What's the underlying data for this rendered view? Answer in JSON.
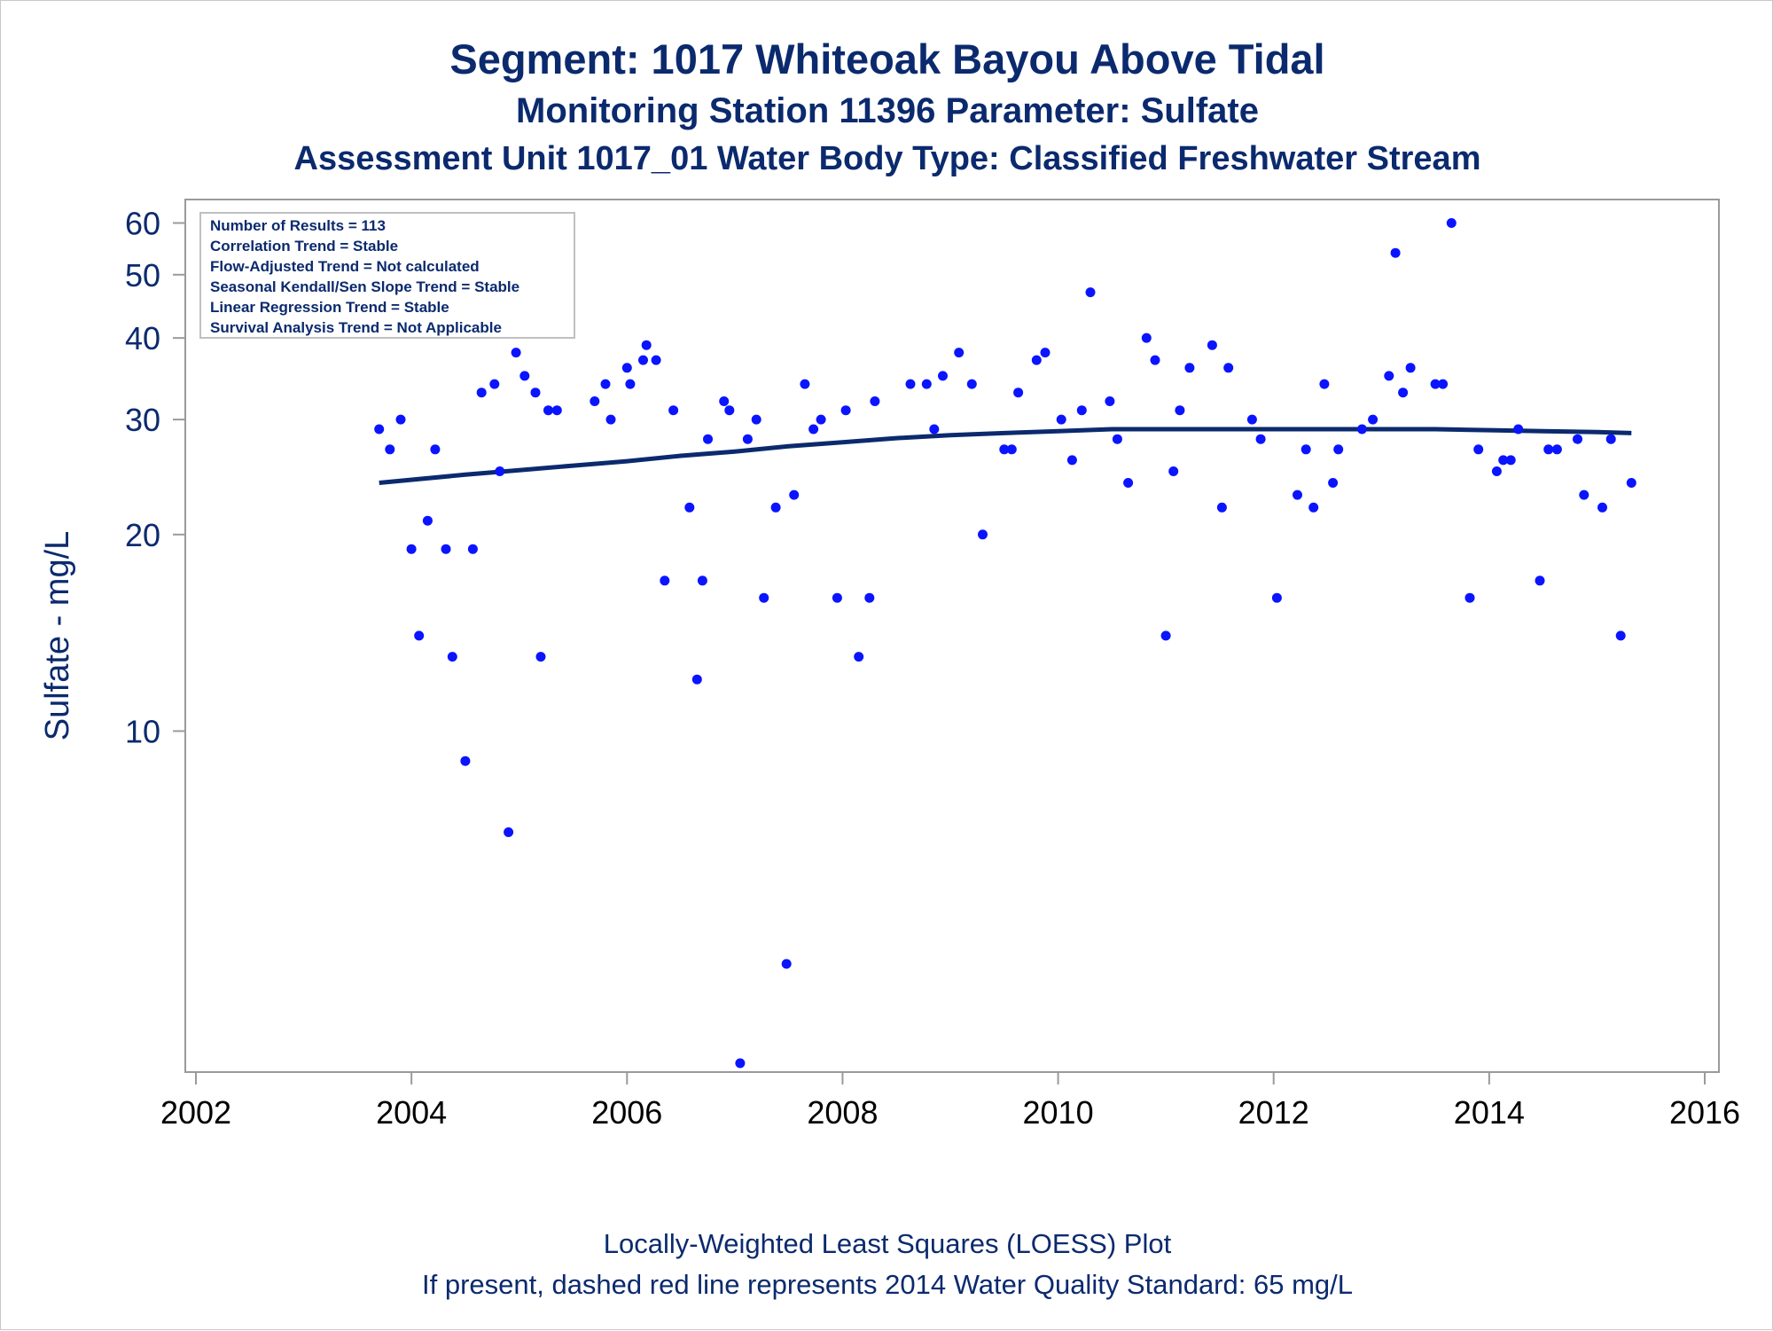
{
  "titles": {
    "line1": "Segment: 1017  Whiteoak Bayou Above Tidal",
    "line2": "Monitoring Station 11396 Parameter: Sulfate",
    "line3": "Assessment Unit 1017_01   Water Body Type: Classified Freshwater Stream"
  },
  "footnotes": {
    "line1": "Locally-Weighted Least Squares (LOESS) Plot",
    "line2": "If present, dashed red line represents 2014 Water Quality Standard: 65    mg/L"
  },
  "stats_box": [
    "Number of Results = 113",
    "Correlation Trend = Stable",
    "Flow-Adjusted Trend = Not calculated",
    "Seasonal Kendall/Sen Slope Trend = Stable",
    "Linear Regression Trend = Stable",
    "Survival Analysis Trend = Not Applicable"
  ],
  "colors": {
    "text": "#0b2a6e",
    "points": "#0a14ff",
    "loess": "#0b2a6e",
    "axis": "#9a9a9a"
  },
  "chart_data": {
    "type": "scatter",
    "title": "Segment: 1017  Whiteoak Bayou Above Tidal",
    "xlabel": "",
    "ylabel": "Sulfate - mg/L",
    "x_scale": "linear",
    "y_scale": "log",
    "xlim": [
      2002,
      2016
    ],
    "ylim": [
      3.1,
      62
    ],
    "x_ticks": [
      2002,
      2004,
      2006,
      2008,
      2010,
      2012,
      2014,
      2016
    ],
    "y_ticks": [
      10,
      20,
      30,
      40,
      50,
      60
    ],
    "grid": false,
    "legend": "none",
    "series": [
      {
        "type": "scatter",
        "points": [
          [
            2003.7,
            29
          ],
          [
            2003.8,
            27
          ],
          [
            2003.9,
            30
          ],
          [
            2004.0,
            19
          ],
          [
            2004.07,
            14
          ],
          [
            2004.15,
            21
          ],
          [
            2004.22,
            27
          ],
          [
            2004.32,
            19
          ],
          [
            2004.38,
            13
          ],
          [
            2004.5,
            9
          ],
          [
            2004.57,
            19
          ],
          [
            2004.65,
            33
          ],
          [
            2004.77,
            34
          ],
          [
            2004.82,
            25
          ],
          [
            2004.9,
            7
          ],
          [
            2004.97,
            38
          ],
          [
            2005.05,
            35
          ],
          [
            2005.15,
            33
          ],
          [
            2005.2,
            13
          ],
          [
            2005.27,
            31
          ],
          [
            2005.35,
            31
          ],
          [
            2005.7,
            32
          ],
          [
            2005.8,
            34
          ],
          [
            2005.85,
            30
          ],
          [
            2006.0,
            36
          ],
          [
            2006.03,
            34
          ],
          [
            2006.15,
            37
          ],
          [
            2006.18,
            39
          ],
          [
            2006.27,
            37
          ],
          [
            2006.35,
            17
          ],
          [
            2006.43,
            31
          ],
          [
            2006.58,
            22
          ],
          [
            2006.65,
            12
          ],
          [
            2006.7,
            17
          ],
          [
            2006.75,
            28
          ],
          [
            2006.9,
            32
          ],
          [
            2006.95,
            31
          ],
          [
            2007.05,
            3.1
          ],
          [
            2007.12,
            28
          ],
          [
            2007.2,
            30
          ],
          [
            2007.27,
            16
          ],
          [
            2007.38,
            22
          ],
          [
            2007.48,
            4.4
          ],
          [
            2007.55,
            23
          ],
          [
            2007.65,
            34
          ],
          [
            2007.73,
            29
          ],
          [
            2007.8,
            30
          ],
          [
            2007.95,
            16
          ],
          [
            2008.03,
            31
          ],
          [
            2008.15,
            13
          ],
          [
            2008.25,
            16
          ],
          [
            2008.3,
            32
          ],
          [
            2008.63,
            34
          ],
          [
            2008.78,
            34
          ],
          [
            2008.85,
            29
          ],
          [
            2008.93,
            35
          ],
          [
            2009.08,
            38
          ],
          [
            2009.2,
            34
          ],
          [
            2009.3,
            20
          ],
          [
            2009.5,
            27
          ],
          [
            2009.57,
            27
          ],
          [
            2009.63,
            33
          ],
          [
            2009.8,
            37
          ],
          [
            2009.88,
            38
          ],
          [
            2010.03,
            30
          ],
          [
            2010.13,
            26
          ],
          [
            2010.22,
            31
          ],
          [
            2010.3,
            47
          ],
          [
            2010.48,
            32
          ],
          [
            2010.55,
            28
          ],
          [
            2010.65,
            24
          ],
          [
            2010.82,
            40
          ],
          [
            2010.9,
            37
          ],
          [
            2011.0,
            14
          ],
          [
            2011.07,
            25
          ],
          [
            2011.13,
            31
          ],
          [
            2011.22,
            36
          ],
          [
            2011.43,
            39
          ],
          [
            2011.52,
            22
          ],
          [
            2011.58,
            36
          ],
          [
            2011.8,
            30
          ],
          [
            2011.88,
            28
          ],
          [
            2012.03,
            16
          ],
          [
            2012.22,
            23
          ],
          [
            2012.3,
            27
          ],
          [
            2012.37,
            22
          ],
          [
            2012.47,
            34
          ],
          [
            2012.55,
            24
          ],
          [
            2012.6,
            27
          ],
          [
            2012.82,
            29
          ],
          [
            2012.92,
            30
          ],
          [
            2013.07,
            35
          ],
          [
            2013.13,
            54
          ],
          [
            2013.2,
            33
          ],
          [
            2013.27,
            36
          ],
          [
            2013.5,
            34
          ],
          [
            2013.57,
            34
          ],
          [
            2013.65,
            60
          ],
          [
            2013.82,
            16
          ],
          [
            2013.9,
            27
          ],
          [
            2014.07,
            25
          ],
          [
            2014.13,
            26
          ],
          [
            2014.2,
            26
          ],
          [
            2014.27,
            29
          ],
          [
            2014.47,
            17
          ],
          [
            2014.55,
            27
          ],
          [
            2014.63,
            27
          ],
          [
            2014.82,
            28
          ],
          [
            2014.88,
            23
          ],
          [
            2015.05,
            22
          ],
          [
            2015.13,
            28
          ],
          [
            2015.22,
            14
          ],
          [
            2015.32,
            24
          ]
        ]
      },
      {
        "type": "line",
        "points": [
          [
            2003.7,
            24.0
          ],
          [
            2004.5,
            24.7
          ],
          [
            2005.0,
            25.1
          ],
          [
            2005.5,
            25.5
          ],
          [
            2006.0,
            25.9
          ],
          [
            2006.5,
            26.4
          ],
          [
            2007.0,
            26.8
          ],
          [
            2007.5,
            27.3
          ],
          [
            2008.0,
            27.7
          ],
          [
            2008.5,
            28.1
          ],
          [
            2009.0,
            28.4
          ],
          [
            2009.5,
            28.6
          ],
          [
            2010.0,
            28.8
          ],
          [
            2010.5,
            29.0
          ],
          [
            2011.0,
            29.0
          ],
          [
            2011.5,
            29.0
          ],
          [
            2012.0,
            29.0
          ],
          [
            2012.5,
            29.0
          ],
          [
            2013.0,
            29.0
          ],
          [
            2013.5,
            29.0
          ],
          [
            2014.0,
            28.9
          ],
          [
            2014.5,
            28.8
          ],
          [
            2015.0,
            28.7
          ],
          [
            2015.32,
            28.6
          ]
        ]
      }
    ]
  }
}
